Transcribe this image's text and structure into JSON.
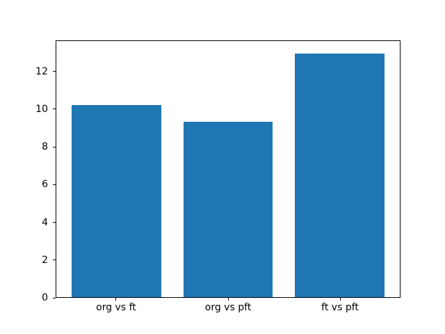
{
  "chart_data": {
    "type": "bar",
    "categories": [
      "org vs ft",
      "org vs pft",
      "ft vs pft"
    ],
    "values": [
      10.25,
      9.35,
      13.0
    ],
    "title": "",
    "xlabel": "",
    "ylabel": "",
    "xlim": [
      -0.54,
      2.54
    ],
    "ylim": [
      0,
      13.65
    ],
    "yticks": [
      0,
      2,
      4,
      6,
      8,
      10,
      12
    ],
    "bar_width": 0.8,
    "bar_color": "#1f77b4",
    "grid": false,
    "legend": null,
    "background_color": "#ffffff",
    "frame_color": "#000000"
  }
}
